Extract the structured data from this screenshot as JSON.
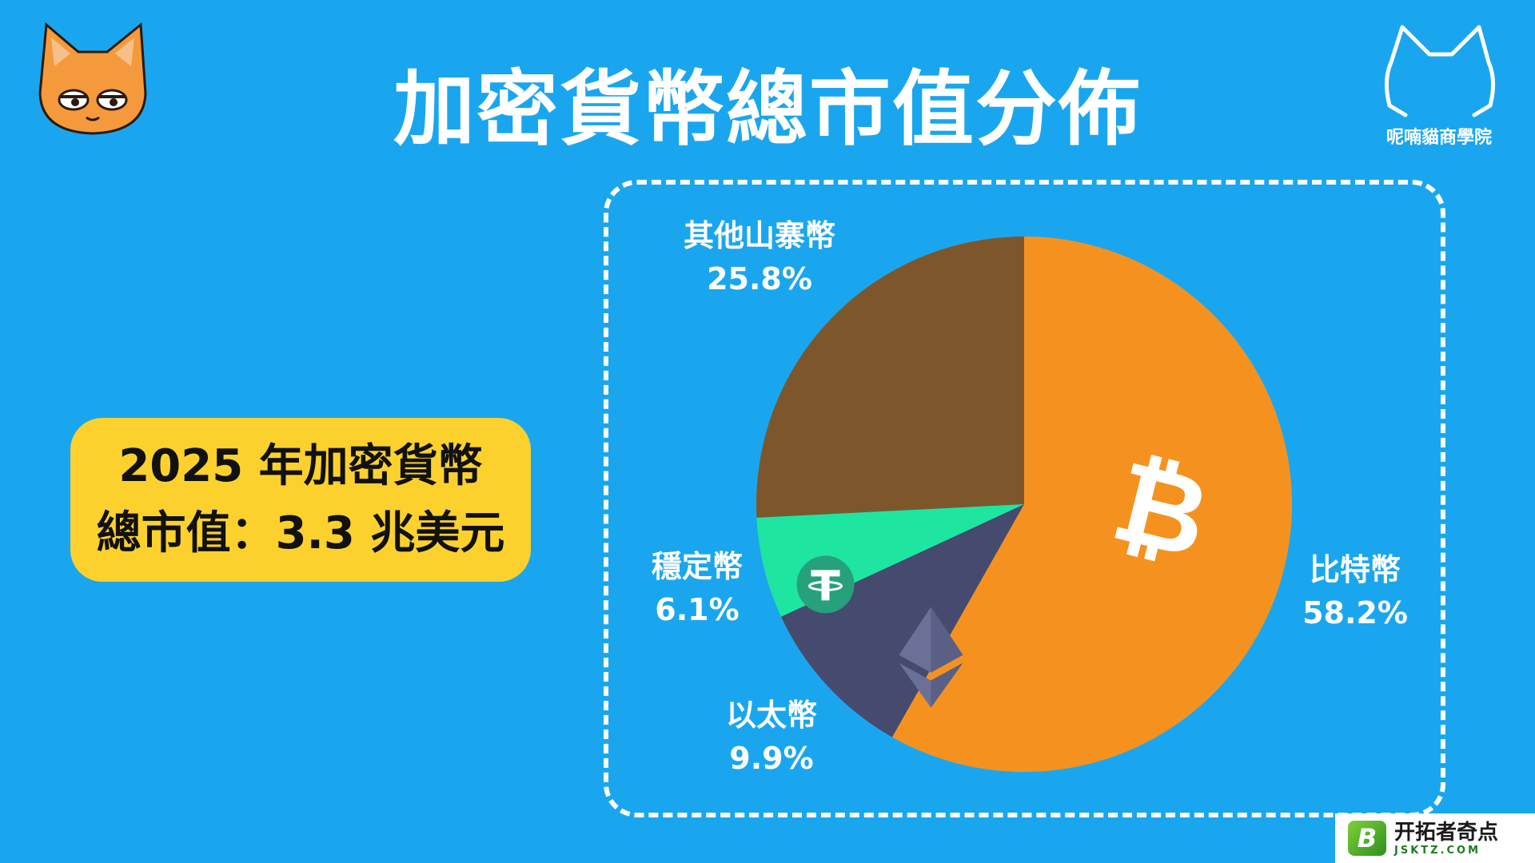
{
  "header": {
    "title": "加密貨幣總市值分佈",
    "brand_name": "呢喃貓商學院"
  },
  "info_box": {
    "line1": "2025 年加密貨幣",
    "line2": "總市值：3.3 兆美元"
  },
  "watermark": {
    "main": "开拓者奇点",
    "sub": "JSKTZ.COM",
    "icon_letter": "B"
  },
  "colors": {
    "background": "#1aa6ee",
    "info_box": "#fcd12e",
    "bitcoin": "#f5921f",
    "ethereum": "#464a6e",
    "stablecoin": "#1ee6a0",
    "altcoins": "#7d572b"
  },
  "chart_data": {
    "type": "pie",
    "title": "加密貨幣總市值分佈",
    "slices": [
      {
        "name": "比特幣",
        "value": 58.2,
        "label": "58.2%",
        "color": "#f5921f",
        "icon": "bitcoin-icon"
      },
      {
        "name": "以太幣",
        "value": 9.9,
        "label": "9.9%",
        "color": "#464a6e",
        "icon": "ethereum-icon"
      },
      {
        "name": "穩定幣",
        "value": 6.1,
        "label": "6.1%",
        "color": "#1ee6a0",
        "icon": "tether-icon"
      },
      {
        "name": "其他山寨幣",
        "value": 25.8,
        "label": "25.8%",
        "color": "#7d572b",
        "icon": ""
      }
    ],
    "start_angle": "12 o'clock",
    "direction": "clockwise",
    "legend": "none (labels beside slices)"
  }
}
